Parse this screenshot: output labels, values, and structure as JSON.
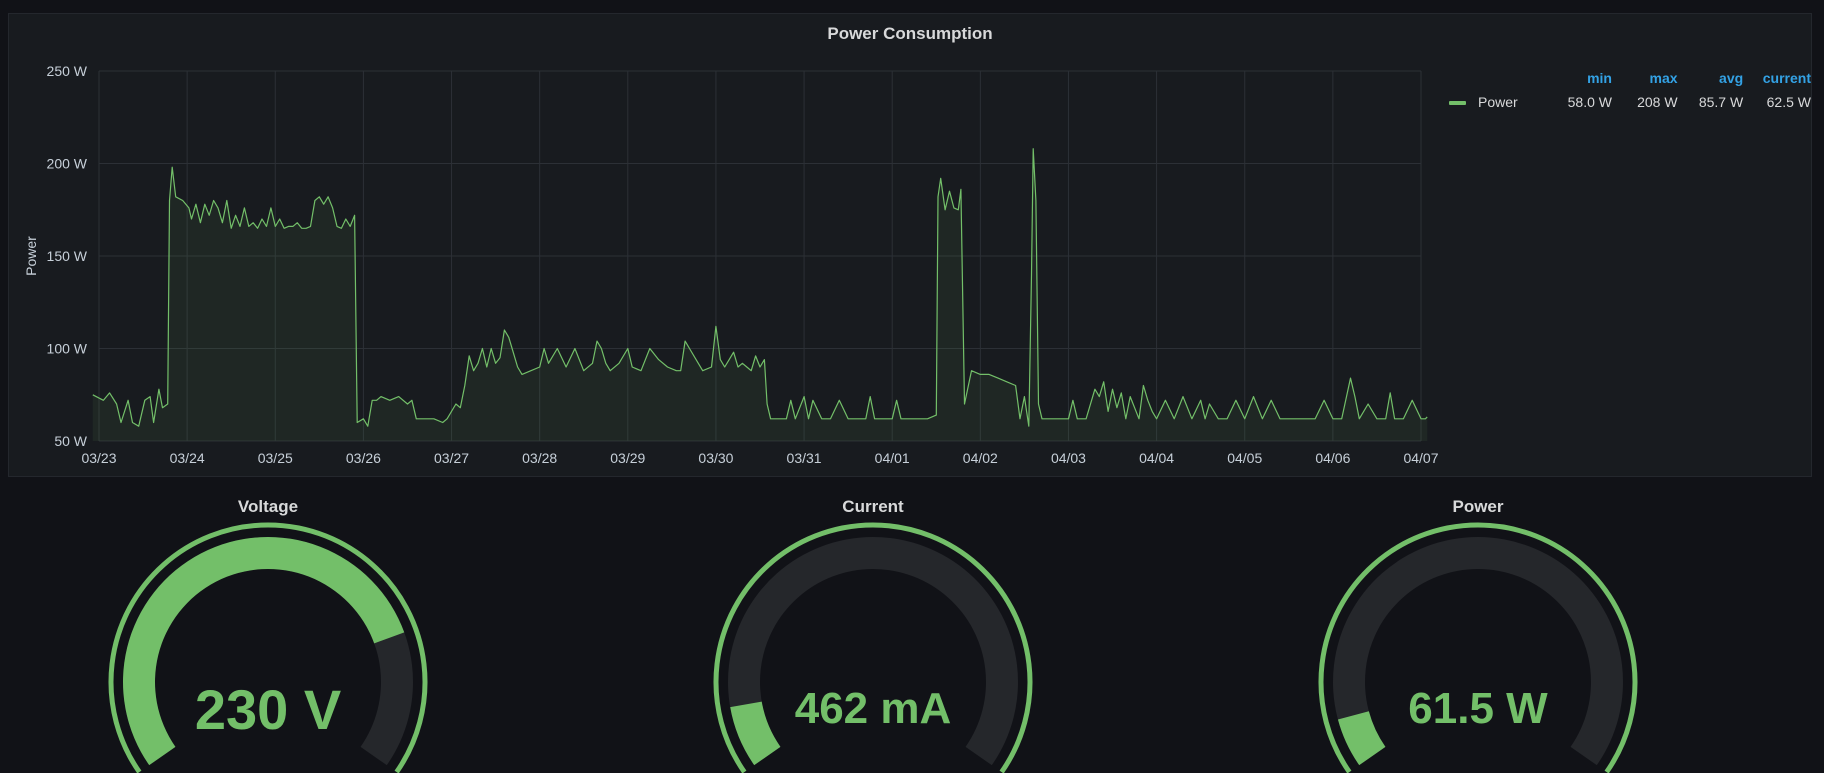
{
  "chart_data": {
    "type": "line",
    "title": "Power Consumption",
    "ylabel": "Power",
    "xlabel": "",
    "ylim": [
      50,
      250
    ],
    "y_ticks": [
      "50 W",
      "100 W",
      "150 W",
      "200 W",
      "250 W"
    ],
    "y_tick_values": [
      50,
      100,
      150,
      200,
      250
    ],
    "x_range": [
      0,
      15.07
    ],
    "x_ticks": [
      "03/23",
      "03/24",
      "03/25",
      "03/26",
      "03/27",
      "03/28",
      "03/29",
      "03/30",
      "03/31",
      "04/01",
      "04/02",
      "04/03",
      "04/04",
      "04/05",
      "04/06",
      "04/07"
    ],
    "grid": true,
    "legend_position": "right",
    "series": [
      {
        "name": "Power",
        "color": "#73bf69",
        "stats": {
          "min": "58.0 W",
          "max": "208 W",
          "avg": "85.7 W",
          "current": "62.5 W"
        },
        "points": [
          [
            -0.07,
            75
          ],
          [
            0.05,
            72
          ],
          [
            0.12,
            76
          ],
          [
            0.2,
            70
          ],
          [
            0.25,
            60
          ],
          [
            0.33,
            72
          ],
          [
            0.38,
            60
          ],
          [
            0.45,
            58
          ],
          [
            0.52,
            72
          ],
          [
            0.58,
            74
          ],
          [
            0.62,
            60
          ],
          [
            0.68,
            78
          ],
          [
            0.72,
            68
          ],
          [
            0.78,
            70
          ],
          [
            0.8,
            180
          ],
          [
            0.83,
            198
          ],
          [
            0.87,
            182
          ],
          [
            0.95,
            180
          ],
          [
            1.02,
            176
          ],
          [
            1.05,
            170
          ],
          [
            1.1,
            178
          ],
          [
            1.15,
            168
          ],
          [
            1.2,
            178
          ],
          [
            1.25,
            172
          ],
          [
            1.3,
            180
          ],
          [
            1.35,
            176
          ],
          [
            1.4,
            168
          ],
          [
            1.45,
            180
          ],
          [
            1.5,
            165
          ],
          [
            1.55,
            172
          ],
          [
            1.6,
            166
          ],
          [
            1.65,
            176
          ],
          [
            1.7,
            166
          ],
          [
            1.75,
            168
          ],
          [
            1.8,
            165
          ],
          [
            1.85,
            170
          ],
          [
            1.9,
            166
          ],
          [
            1.95,
            176
          ],
          [
            2.0,
            166
          ],
          [
            2.05,
            170
          ],
          [
            2.1,
            165
          ],
          [
            2.15,
            166
          ],
          [
            2.2,
            166
          ],
          [
            2.25,
            168
          ],
          [
            2.3,
            165
          ],
          [
            2.35,
            165
          ],
          [
            2.4,
            166
          ],
          [
            2.45,
            180
          ],
          [
            2.5,
            182
          ],
          [
            2.55,
            178
          ],
          [
            2.6,
            182
          ],
          [
            2.65,
            176
          ],
          [
            2.7,
            166
          ],
          [
            2.75,
            165
          ],
          [
            2.8,
            170
          ],
          [
            2.85,
            166
          ],
          [
            2.9,
            172
          ],
          [
            2.93,
            60
          ],
          [
            3.0,
            62
          ],
          [
            3.05,
            58
          ],
          [
            3.1,
            72
          ],
          [
            3.15,
            72
          ],
          [
            3.2,
            74
          ],
          [
            3.3,
            72
          ],
          [
            3.4,
            74
          ],
          [
            3.5,
            70
          ],
          [
            3.55,
            72
          ],
          [
            3.6,
            62
          ],
          [
            3.7,
            62
          ],
          [
            3.8,
            62
          ],
          [
            3.9,
            60
          ],
          [
            3.95,
            62
          ],
          [
            4.05,
            70
          ],
          [
            4.1,
            68
          ],
          [
            4.15,
            80
          ],
          [
            4.2,
            96
          ],
          [
            4.25,
            88
          ],
          [
            4.3,
            92
          ],
          [
            4.35,
            100
          ],
          [
            4.4,
            90
          ],
          [
            4.45,
            100
          ],
          [
            4.5,
            92
          ],
          [
            4.55,
            95
          ],
          [
            4.6,
            110
          ],
          [
            4.65,
            106
          ],
          [
            4.7,
            98
          ],
          [
            4.75,
            90
          ],
          [
            4.8,
            86
          ],
          [
            4.9,
            88
          ],
          [
            5.0,
            90
          ],
          [
            5.05,
            100
          ],
          [
            5.1,
            92
          ],
          [
            5.2,
            100
          ],
          [
            5.3,
            90
          ],
          [
            5.4,
            100
          ],
          [
            5.5,
            88
          ],
          [
            5.6,
            92
          ],
          [
            5.65,
            104
          ],
          [
            5.7,
            100
          ],
          [
            5.75,
            92
          ],
          [
            5.8,
            88
          ],
          [
            5.9,
            92
          ],
          [
            6.0,
            100
          ],
          [
            6.05,
            90
          ],
          [
            6.15,
            88
          ],
          [
            6.25,
            100
          ],
          [
            6.35,
            94
          ],
          [
            6.45,
            90
          ],
          [
            6.55,
            88
          ],
          [
            6.6,
            88
          ],
          [
            6.65,
            104
          ],
          [
            6.7,
            100
          ],
          [
            6.8,
            92
          ],
          [
            6.85,
            88
          ],
          [
            6.95,
            90
          ],
          [
            7.0,
            112
          ],
          [
            7.05,
            94
          ],
          [
            7.1,
            90
          ],
          [
            7.15,
            94
          ],
          [
            7.2,
            98
          ],
          [
            7.25,
            90
          ],
          [
            7.3,
            92
          ],
          [
            7.35,
            90
          ],
          [
            7.4,
            88
          ],
          [
            7.45,
            96
          ],
          [
            7.5,
            90
          ],
          [
            7.55,
            94
          ],
          [
            7.58,
            70
          ],
          [
            7.62,
            62
          ],
          [
            7.7,
            62
          ],
          [
            7.8,
            62
          ],
          [
            7.85,
            72
          ],
          [
            7.9,
            62
          ],
          [
            8.0,
            74
          ],
          [
            8.05,
            62
          ],
          [
            8.1,
            72
          ],
          [
            8.2,
            62
          ],
          [
            8.3,
            62
          ],
          [
            8.4,
            72
          ],
          [
            8.5,
            62
          ],
          [
            8.6,
            62
          ],
          [
            8.7,
            62
          ],
          [
            8.75,
            74
          ],
          [
            8.8,
            62
          ],
          [
            8.9,
            62
          ],
          [
            9.0,
            62
          ],
          [
            9.05,
            72
          ],
          [
            9.1,
            62
          ],
          [
            9.2,
            62
          ],
          [
            9.3,
            62
          ],
          [
            9.4,
            62
          ],
          [
            9.5,
            64
          ],
          [
            9.52,
            182
          ],
          [
            9.55,
            192
          ],
          [
            9.6,
            175
          ],
          [
            9.65,
            185
          ],
          [
            9.7,
            176
          ],
          [
            9.75,
            175
          ],
          [
            9.78,
            186
          ],
          [
            9.82,
            70
          ],
          [
            9.9,
            88
          ],
          [
            10.0,
            86
          ],
          [
            10.1,
            86
          ],
          [
            10.2,
            84
          ],
          [
            10.3,
            82
          ],
          [
            10.4,
            80
          ],
          [
            10.45,
            62
          ],
          [
            10.5,
            74
          ],
          [
            10.55,
            58
          ],
          [
            10.58,
            140
          ],
          [
            10.6,
            208
          ],
          [
            10.63,
            180
          ],
          [
            10.66,
            70
          ],
          [
            10.7,
            62
          ],
          [
            10.8,
            62
          ],
          [
            10.9,
            62
          ],
          [
            11.0,
            62
          ],
          [
            11.05,
            72
          ],
          [
            11.1,
            62
          ],
          [
            11.2,
            62
          ],
          [
            11.3,
            78
          ],
          [
            11.35,
            74
          ],
          [
            11.4,
            82
          ],
          [
            11.45,
            66
          ],
          [
            11.5,
            78
          ],
          [
            11.55,
            68
          ],
          [
            11.6,
            76
          ],
          [
            11.65,
            62
          ],
          [
            11.7,
            74
          ],
          [
            11.8,
            62
          ],
          [
            11.85,
            80
          ],
          [
            11.9,
            72
          ],
          [
            11.95,
            66
          ],
          [
            12.0,
            62
          ],
          [
            12.1,
            72
          ],
          [
            12.2,
            62
          ],
          [
            12.3,
            74
          ],
          [
            12.4,
            62
          ],
          [
            12.5,
            72
          ],
          [
            12.55,
            62
          ],
          [
            12.6,
            70
          ],
          [
            12.7,
            62
          ],
          [
            12.8,
            62
          ],
          [
            12.9,
            72
          ],
          [
            13.0,
            62
          ],
          [
            13.1,
            74
          ],
          [
            13.2,
            62
          ],
          [
            13.3,
            72
          ],
          [
            13.4,
            62
          ],
          [
            13.5,
            62
          ],
          [
            13.6,
            62
          ],
          [
            13.7,
            62
          ],
          [
            13.8,
            62
          ],
          [
            13.9,
            72
          ],
          [
            14.0,
            62
          ],
          [
            14.1,
            62
          ],
          [
            14.2,
            84
          ],
          [
            14.25,
            74
          ],
          [
            14.3,
            62
          ],
          [
            14.4,
            70
          ],
          [
            14.5,
            62
          ],
          [
            14.6,
            62
          ],
          [
            14.65,
            76
          ],
          [
            14.7,
            62
          ],
          [
            14.8,
            62
          ],
          [
            14.9,
            72
          ],
          [
            15.0,
            62
          ],
          [
            15.05,
            62
          ],
          [
            15.07,
            63
          ]
        ]
      }
    ]
  },
  "legend": {
    "headers": [
      "min",
      "max",
      "avg",
      "current"
    ],
    "series_name": "Power",
    "values": [
      "58.0 W",
      "208 W",
      "85.7 W",
      "62.5 W"
    ]
  },
  "gauges": [
    {
      "title": "Voltage",
      "value": "230 V",
      "fraction": 0.78,
      "color": "#73bf69"
    },
    {
      "title": "Current",
      "value": "462 mA",
      "fraction": 0.1,
      "color": "#73bf69"
    },
    {
      "title": "Power",
      "value": "61.5 W",
      "fraction": 0.08,
      "color": "#73bf69"
    }
  ]
}
